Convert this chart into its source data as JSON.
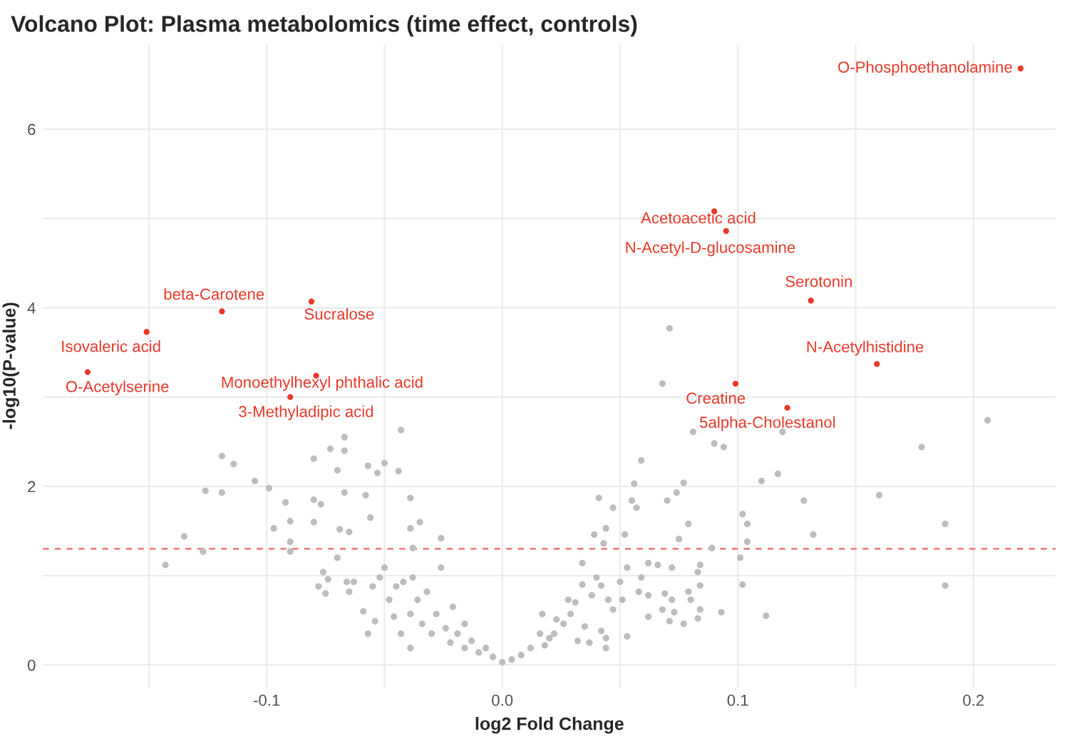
{
  "chart_data": {
    "type": "scatter",
    "title": "Volcano Plot: Plasma metabolomics (time effect, controls)",
    "xlabel": "log2 Fold Change",
    "ylabel": "-log10(P-value)",
    "xlim": [
      -0.195,
      0.235
    ],
    "ylim": [
      -0.25,
      6.95
    ],
    "xticks": [
      {
        "value": -0.15,
        "label": null
      },
      {
        "value": -0.1,
        "label": "-0.1"
      },
      {
        "value": -0.05,
        "label": null
      },
      {
        "value": 0.0,
        "label": "0.0"
      },
      {
        "value": 0.05,
        "label": null
      },
      {
        "value": 0.1,
        "label": "0.1"
      },
      {
        "value": 0.15,
        "label": null
      },
      {
        "value": 0.2,
        "label": "0.2"
      }
    ],
    "yticks": [
      0,
      {
        "value": 1,
        "label": null
      },
      2,
      {
        "value": 3,
        "label": null
      },
      4,
      {
        "value": 5,
        "label": null
      },
      6
    ],
    "grid": true,
    "series": [
      {
        "color": "#bdbdbd",
        "x": [
          -0.143,
          -0.135,
          -0.126,
          -0.119,
          -0.119,
          -0.114,
          -0.127,
          -0.105,
          -0.099,
          -0.097,
          -0.092,
          -0.09,
          -0.09,
          -0.09,
          -0.08,
          -0.08,
          -0.08,
          -0.077,
          -0.073,
          -0.067,
          -0.067,
          -0.07,
          -0.067,
          -0.069,
          -0.065,
          -0.057,
          -0.058,
          -0.053,
          -0.05,
          -0.043,
          -0.044,
          -0.039,
          -0.056,
          -0.035,
          -0.039,
          -0.026,
          -0.038,
          -0.076,
          -0.078,
          -0.075,
          -0.074,
          -0.07,
          -0.066,
          -0.063,
          -0.065,
          -0.059,
          -0.057,
          -0.054,
          -0.055,
          -0.052,
          -0.05,
          -0.048,
          -0.046,
          -0.045,
          -0.042,
          -0.043,
          -0.039,
          -0.038,
          -0.036,
          -0.039,
          -0.034,
          -0.032,
          -0.03,
          -0.028,
          -0.026,
          -0.024,
          -0.021,
          -0.022,
          -0.019,
          -0.016,
          -0.016,
          -0.013,
          -0.01,
          -0.007,
          -0.004,
          0.0,
          0.004,
          0.008,
          0.012,
          0.016,
          0.017,
          0.071,
          0.068,
          0.081,
          0.09,
          0.094,
          0.119,
          0.206,
          0.178,
          0.059,
          0.117,
          0.11,
          0.077,
          0.056,
          0.074,
          0.041,
          0.16,
          0.128,
          0.047,
          0.055,
          0.057,
          0.07,
          0.102,
          0.104,
          0.079,
          0.188,
          0.044,
          0.039,
          0.052,
          0.132,
          0.075,
          0.104,
          0.043,
          0.089,
          0.101,
          0.102,
          0.188,
          0.112,
          0.093,
          0.084,
          0.083,
          0.077,
          0.071,
          0.073,
          0.068,
          0.062,
          0.062,
          0.069,
          0.072,
          0.079,
          0.084,
          0.083,
          0.084,
          0.08,
          0.072,
          0.066,
          0.062,
          0.059,
          0.058,
          0.053,
          0.05,
          0.051,
          0.047,
          0.045,
          0.042,
          0.04,
          0.038,
          0.034,
          0.034,
          0.031,
          0.028,
          0.029,
          0.026,
          0.023,
          0.022,
          0.02,
          0.018,
          0.044,
          0.053,
          0.042,
          0.035,
          0.032,
          0.037,
          0.044
        ],
        "values": [
          1.12,
          1.44,
          1.95,
          2.34,
          1.93,
          2.25,
          1.27,
          2.06,
          1.98,
          1.53,
          1.82,
          1.61,
          1.38,
          1.27,
          2.31,
          1.85,
          1.6,
          1.8,
          2.42,
          2.55,
          2.4,
          2.18,
          1.93,
          1.52,
          1.49,
          2.23,
          1.9,
          2.15,
          2.26,
          2.63,
          2.17,
          1.87,
          1.65,
          1.6,
          1.53,
          1.42,
          1.31,
          1.04,
          0.88,
          0.8,
          0.96,
          1.2,
          0.93,
          0.93,
          0.82,
          0.6,
          0.35,
          0.49,
          0.88,
          0.98,
          1.09,
          0.73,
          0.54,
          0.88,
          0.93,
          0.35,
          0.57,
          0.98,
          0.73,
          0.19,
          0.46,
          0.82,
          0.35,
          0.57,
          1.09,
          0.41,
          0.65,
          0.25,
          0.35,
          0.46,
          0.19,
          0.27,
          0.14,
          0.19,
          0.09,
          0.03,
          0.06,
          0.11,
          0.19,
          0.35,
          0.57,
          3.77,
          3.15,
          2.61,
          2.48,
          2.44,
          2.61,
          2.74,
          2.44,
          2.29,
          2.14,
          2.06,
          2.04,
          2.03,
          1.93,
          1.87,
          1.9,
          1.84,
          1.76,
          1.84,
          1.76,
          1.84,
          1.69,
          1.58,
          1.58,
          1.58,
          1.53,
          1.46,
          1.46,
          1.46,
          1.41,
          1.38,
          1.36,
          1.31,
          1.2,
          0.9,
          0.89,
          0.55,
          0.59,
          0.62,
          0.52,
          0.46,
          0.49,
          0.59,
          0.62,
          0.54,
          0.78,
          0.8,
          0.73,
          0.82,
          0.89,
          1.04,
          1.12,
          0.73,
          1.09,
          1.12,
          1.14,
          0.98,
          0.82,
          1.09,
          0.93,
          0.73,
          0.62,
          0.73,
          0.89,
          0.98,
          0.78,
          1.14,
          0.9,
          0.7,
          0.73,
          0.57,
          0.46,
          0.51,
          0.35,
          0.3,
          0.22,
          0.3,
          0.32,
          0.38,
          0.43,
          0.27,
          0.25,
          0.19
        ]
      },
      {
        "color": "#e8392b",
        "x": [
          0.22,
          0.09,
          0.095,
          0.131,
          0.159,
          0.099,
          0.121,
          -0.119,
          -0.081,
          -0.151,
          -0.176,
          -0.079,
          -0.09
        ],
        "values": [
          6.68,
          5.08,
          4.86,
          4.08,
          3.37,
          3.15,
          2.88,
          3.96,
          4.07,
          3.73,
          3.28,
          3.24,
          3.0
        ]
      }
    ],
    "annotations": [
      {
        "text": "O-Phosphoethanolamine",
        "x": 0.22,
        "y": 6.68
      },
      {
        "text": "Acetoacetic acid",
        "x": 0.09,
        "y": 5.08
      },
      {
        "text": "N-Acetyl-D-glucosamine",
        "x": 0.095,
        "y": 4.86
      },
      {
        "text": "Serotonin",
        "x": 0.131,
        "y": 4.08
      },
      {
        "text": "N-Acetylhistidine",
        "x": 0.159,
        "y": 3.37
      },
      {
        "text": "Creatine",
        "x": 0.099,
        "y": 3.15
      },
      {
        "text": "5alpha-Cholestanol",
        "x": 0.121,
        "y": 2.88
      },
      {
        "text": "beta-Carotene",
        "x": -0.119,
        "y": 3.96
      },
      {
        "text": "Sucralose",
        "x": -0.081,
        "y": 4.07
      },
      {
        "text": "Isovaleric acid",
        "x": -0.151,
        "y": 3.73
      },
      {
        "text": "O-Acetylserine",
        "x": -0.176,
        "y": 3.28
      },
      {
        "text": "Monoethylhexyl phthalic acid",
        "x": -0.079,
        "y": 3.24
      },
      {
        "text": "3-Methyladipic acid",
        "x": -0.09,
        "y": 3.0
      }
    ],
    "ref_lines": [
      {
        "axis": "y",
        "value": 1.3,
        "label": null,
        "color": "#f08080",
        "line_style": "dashed"
      }
    ]
  }
}
